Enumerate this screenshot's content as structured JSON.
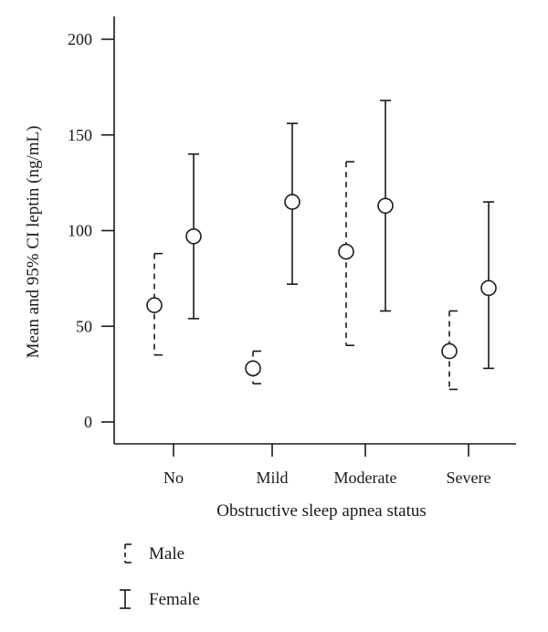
{
  "chart_data": {
    "type": "errorbar",
    "xlabel": "Obstructive sleep apnea status",
    "ylabel": "Mean and 95% CI leptin (ng/mL)",
    "ylim": [
      0,
      200
    ],
    "yticks": [
      0,
      50,
      100,
      150,
      200
    ],
    "categories": [
      "No",
      "Mild",
      "Moderate",
      "Severe"
    ],
    "grid": false,
    "legend_placement": "bottom-left",
    "series": [
      {
        "name": "Male",
        "style": "dashed",
        "color": "#1a1a1a",
        "mean": [
          61,
          28,
          89,
          37
        ],
        "lower": [
          35,
          20,
          40,
          17
        ],
        "upper": [
          88,
          37,
          136,
          58
        ]
      },
      {
        "name": "Female",
        "style": "solid",
        "color": "#1a1a1a",
        "mean": [
          97,
          115,
          113,
          70
        ],
        "lower": [
          54,
          72,
          58,
          28
        ],
        "upper": [
          140,
          156,
          168,
          115
        ]
      }
    ]
  }
}
